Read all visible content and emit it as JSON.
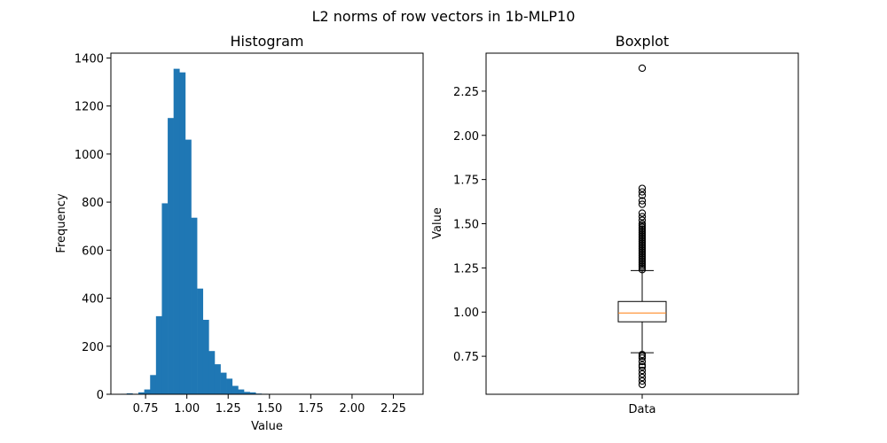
{
  "figure": {
    "suptitle": "L2 norms of row vectors in 1b-MLP10"
  },
  "colors": {
    "bar": "#1f77b4",
    "median": "#ff7f0e",
    "line": "#000000",
    "background": "#ffffff"
  },
  "chart_data": [
    {
      "type": "bar",
      "title": "Histogram",
      "xlabel": "Value",
      "ylabel": "Frequency",
      "xlim": [
        0.54,
        2.43
      ],
      "ylim": [
        0,
        1420
      ],
      "xticks": [
        0.75,
        1.0,
        1.25,
        1.5,
        1.75,
        2.0,
        2.25
      ],
      "xtick_labels": [
        "0.75",
        "1.00",
        "1.25",
        "1.50",
        "1.75",
        "2.00",
        "2.25"
      ],
      "yticks": [
        0,
        200,
        400,
        600,
        800,
        1000,
        1200,
        1400
      ],
      "ytick_labels": [
        "0",
        "200",
        "400",
        "600",
        "800",
        "1000",
        "1200",
        "1400"
      ],
      "bin_start": 0.6,
      "bin_width": 0.0355,
      "values": [
        2,
        4,
        2,
        8,
        20,
        80,
        325,
        795,
        1150,
        1355,
        1340,
        1060,
        735,
        440,
        310,
        180,
        125,
        90,
        65,
        35,
        20,
        10,
        8,
        3,
        2,
        1,
        1,
        1,
        0,
        0,
        0,
        0,
        0,
        0,
        0,
        0,
        0,
        0,
        0,
        0,
        0,
        0,
        0,
        0,
        0,
        0,
        0,
        0,
        0,
        1
      ]
    },
    {
      "type": "box",
      "title": "Boxplot",
      "xlabel": "",
      "ylabel": "Value",
      "category": "Data",
      "ylim": [
        0.535,
        2.465
      ],
      "yticks": [
        0.75,
        1.0,
        1.25,
        1.5,
        1.75,
        2.0,
        2.25
      ],
      "ytick_labels": [
        "0.75",
        "1.00",
        "1.25",
        "1.50",
        "1.75",
        "2.00",
        "2.25"
      ],
      "q1": 0.945,
      "median": 0.995,
      "q3": 1.06,
      "whisker_low": 0.77,
      "whisker_high": 1.235,
      "outliers_high": [
        1.24,
        1.25,
        1.26,
        1.27,
        1.28,
        1.29,
        1.3,
        1.31,
        1.32,
        1.33,
        1.34,
        1.35,
        1.36,
        1.37,
        1.38,
        1.39,
        1.4,
        1.41,
        1.42,
        1.43,
        1.44,
        1.45,
        1.46,
        1.47,
        1.48,
        1.49,
        1.5,
        1.52,
        1.54,
        1.56,
        1.61,
        1.63,
        1.66,
        1.68,
        1.7,
        2.38
      ],
      "outliers_low": [
        0.59,
        0.61,
        0.63,
        0.65,
        0.67,
        0.69,
        0.7,
        0.72,
        0.74,
        0.75,
        0.76
      ]
    }
  ]
}
